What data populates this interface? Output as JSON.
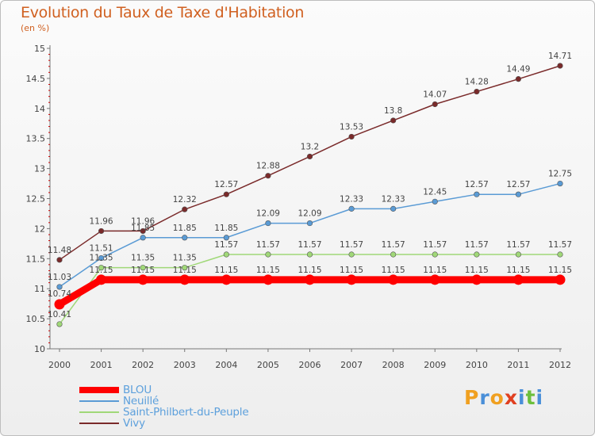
{
  "title": "Evolution du Taux de Taxe d'Habitation",
  "subtitle": "(en %)",
  "brand": {
    "letters": [
      "P",
      "r",
      "o",
      "x",
      "i",
      "t",
      "i"
    ],
    "colors": [
      "#f0a020",
      "#4a8fd8",
      "#f0a020",
      "#e04020",
      "#4a8fd8",
      "#6cbf3c",
      "#4a8fd8"
    ]
  },
  "chart_data": {
    "type": "line",
    "x": [
      "2000",
      "2001",
      "2002",
      "2003",
      "2004",
      "2005",
      "2006",
      "2007",
      "2008",
      "2009",
      "2010",
      "2011",
      "2012"
    ],
    "ylim": [
      10,
      15
    ],
    "yticks": [
      "10",
      "10.5",
      "11",
      "11.5",
      "12",
      "12.5",
      "13",
      "13.5",
      "14",
      "14.5",
      "15"
    ],
    "grid": false,
    "legend_position": "bottom-left",
    "series": [
      {
        "name": "BLOU",
        "color": "#ff0000",
        "values": [
          10.74,
          11.15,
          11.15,
          11.15,
          11.15,
          11.15,
          11.15,
          11.15,
          11.15,
          11.15,
          11.15,
          11.15,
          11.15
        ],
        "labels": [
          "10.74",
          "11.15",
          "11.15",
          "11.15",
          "11.15",
          "11.15",
          "11.15",
          "11.15",
          "11.15",
          "11.15",
          "11.15",
          "11.15",
          "11.15"
        ]
      },
      {
        "name": "Neuillé",
        "color": "#5a9bd5",
        "values": [
          11.03,
          11.51,
          11.85,
          11.85,
          11.85,
          12.09,
          12.09,
          12.33,
          12.33,
          12.45,
          12.57,
          12.57,
          12.75
        ],
        "labels": [
          "11.03",
          "11.51",
          "11.85",
          "11.85",
          "11.85",
          "12.09",
          "12.09",
          "12.33",
          "12.33",
          "12.45",
          "12.57",
          "12.57",
          "12.75"
        ]
      },
      {
        "name": "Saint-Philbert-du-Peuple",
        "color": "#a0d878",
        "values": [
          10.41,
          11.35,
          11.35,
          11.35,
          11.57,
          11.57,
          11.57,
          11.57,
          11.57,
          11.57,
          11.57,
          11.57,
          11.57
        ],
        "labels": [
          "10.41",
          "11.35",
          "11.35",
          "11.35",
          "11.57",
          "11.57",
          "11.57",
          "11.57",
          "11.57",
          "11.57",
          "11.57",
          "11.57",
          "11.57"
        ]
      },
      {
        "name": "Vivy",
        "color": "#7a2a2a",
        "values": [
          11.48,
          11.96,
          11.96,
          12.32,
          12.57,
          12.88,
          13.2,
          13.53,
          13.8,
          14.07,
          14.28,
          14.49,
          14.71
        ],
        "labels": [
          "11.48",
          "11.96",
          "11.96",
          "12.32",
          "12.57",
          "12.88",
          "13.2",
          "13.53",
          "13.8",
          "14.07",
          "14.28",
          "14.49",
          "14.71"
        ]
      }
    ]
  }
}
